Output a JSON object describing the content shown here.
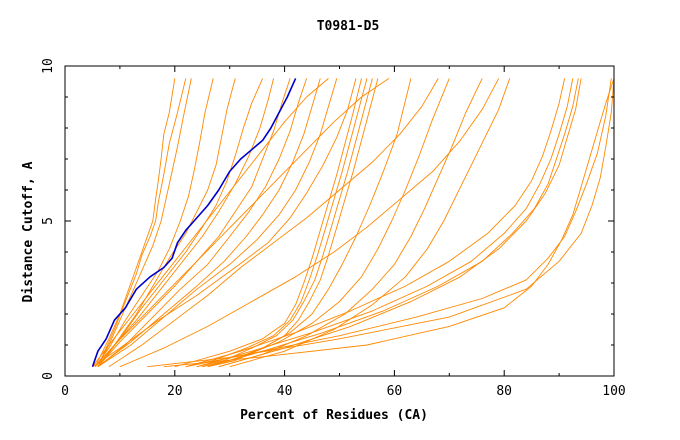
{
  "chart_data": {
    "type": "line",
    "title": "T0981-D5",
    "xlabel": "Percent of Residues (CA)",
    "ylabel": "Distance Cutoff, A",
    "xlim": [
      0,
      100
    ],
    "ylim": [
      0,
      10
    ],
    "xticks": [
      "0",
      "20",
      "40",
      "60",
      "80",
      "100"
    ],
    "yticks": [
      "0",
      "5",
      "10"
    ],
    "grid": false,
    "colors": {
      "highlight": "#0000cc",
      "others": "#ff8800"
    },
    "highlight_series": {
      "x": [
        5.0,
        6.0,
        7.5,
        9.0,
        11.0,
        13.0,
        15.5,
        18.0,
        19.5,
        20.5,
        22.0,
        24.0,
        26.0,
        28.0,
        30.0,
        32.0,
        34.0,
        36.0,
        37.5,
        39.0,
        40.5,
        42.0
      ],
      "y": [
        0.3,
        0.8,
        1.2,
        1.8,
        2.2,
        2.8,
        3.2,
        3.5,
        3.8,
        4.3,
        4.7,
        5.1,
        5.5,
        6.0,
        6.6,
        7.0,
        7.3,
        7.6,
        8.0,
        8.5,
        9.0,
        9.6
      ]
    },
    "series": [
      {
        "x": [
          5.5,
          8,
          10,
          12,
          13,
          14,
          15,
          16,
          16.5,
          17,
          17.5,
          18,
          19,
          20
        ],
        "y": [
          0.3,
          1.2,
          2.0,
          3.0,
          3.5,
          4.0,
          4.5,
          5.0,
          5.7,
          6.3,
          7.0,
          7.8,
          8.5,
          9.6
        ]
      },
      {
        "x": [
          6,
          9,
          11,
          13,
          14,
          15.5,
          16.5,
          17,
          18,
          19,
          20.5,
          22
        ],
        "y": [
          0.3,
          1.5,
          2.4,
          3.3,
          3.9,
          4.5,
          5.0,
          5.6,
          6.5,
          7.5,
          8.5,
          9.6
        ]
      },
      {
        "x": [
          6,
          8,
          10,
          12,
          14,
          16,
          17.5,
          18.5,
          19.5,
          20.5,
          21.5,
          23
        ],
        "y": [
          0.3,
          1.0,
          1.8,
          2.6,
          3.4,
          4.2,
          5.0,
          5.8,
          6.6,
          7.4,
          8.3,
          9.6
        ]
      },
      {
        "x": [
          5.5,
          8,
          11,
          14,
          17,
          19,
          21,
          22.5,
          23.5,
          24.5,
          25.5,
          27
        ],
        "y": [
          0.3,
          0.9,
          1.8,
          2.6,
          3.4,
          4.1,
          5.0,
          5.8,
          6.6,
          7.5,
          8.5,
          9.6
        ]
      },
      {
        "x": [
          6,
          9,
          13,
          16,
          19,
          22,
          24,
          26,
          27.5,
          28.5,
          29.5,
          31
        ],
        "y": [
          0.3,
          1.0,
          2.0,
          2.9,
          3.8,
          4.6,
          5.3,
          6.0,
          6.8,
          7.7,
          8.6,
          9.6
        ]
      },
      {
        "x": [
          6,
          10,
          14,
          18,
          22,
          25,
          27.5,
          29.5,
          31,
          32.5,
          34,
          36
        ],
        "y": [
          0.3,
          1.2,
          2.2,
          3.1,
          4.0,
          4.8,
          5.5,
          6.3,
          7.1,
          8.0,
          8.8,
          9.6
        ]
      },
      {
        "x": [
          5.5,
          9,
          13,
          17,
          21,
          25,
          28,
          31,
          33.5,
          35.5,
          37,
          38
        ],
        "y": [
          0.3,
          1.0,
          1.8,
          2.7,
          3.6,
          4.5,
          5.3,
          6.2,
          7.1,
          8.0,
          8.9,
          9.6
        ]
      },
      {
        "x": [
          6,
          10,
          15,
          20,
          24,
          28,
          31,
          34,
          36,
          38,
          39.5,
          41
        ],
        "y": [
          0.3,
          1.1,
          2.0,
          2.9,
          3.7,
          4.5,
          5.3,
          6.1,
          7.0,
          7.9,
          8.8,
          9.6
        ]
      },
      {
        "x": [
          6,
          11,
          16,
          21,
          26,
          30,
          33.5,
          36.5,
          39,
          41,
          42.5,
          44
        ],
        "y": [
          0.3,
          1.0,
          1.9,
          2.8,
          3.6,
          4.5,
          5.3,
          6.1,
          7.0,
          7.9,
          8.8,
          9.6
        ]
      },
      {
        "x": [
          6,
          12,
          18,
          24,
          29,
          33,
          36,
          39,
          41.5,
          43.5,
          45,
          46.5
        ],
        "y": [
          0.3,
          1.1,
          2.0,
          2.9,
          3.7,
          4.5,
          5.2,
          6.0,
          6.9,
          7.8,
          8.7,
          9.6
        ]
      },
      {
        "x": [
          6,
          12,
          18,
          24,
          30,
          35,
          39,
          42,
          44.5,
          46.5,
          48,
          49.5
        ],
        "y": [
          0.3,
          1.0,
          1.9,
          2.8,
          3.6,
          4.4,
          5.2,
          6.0,
          6.9,
          7.8,
          8.7,
          9.6
        ]
      },
      {
        "x": [
          5,
          10,
          17,
          24,
          31,
          37,
          41,
          44,
          47,
          49.5,
          51.5,
          53
        ],
        "y": [
          0.3,
          0.9,
          1.8,
          2.6,
          3.5,
          4.3,
          5.1,
          5.9,
          6.8,
          7.7,
          8.6,
          9.6
        ]
      },
      {
        "x": [
          20,
          24,
          30,
          36,
          40,
          42,
          43.5,
          45,
          46.5,
          48,
          49.5,
          51,
          52.5,
          54
        ],
        "y": [
          0.3,
          0.5,
          0.8,
          1.2,
          1.7,
          2.3,
          3.0,
          3.8,
          4.7,
          5.6,
          6.5,
          7.5,
          8.5,
          9.6
        ]
      },
      {
        "x": [
          22,
          27,
          33,
          38,
          41,
          43,
          44.5,
          46,
          47.5,
          49,
          50.5,
          52,
          53.5,
          55
        ],
        "y": [
          0.3,
          0.5,
          0.9,
          1.3,
          1.8,
          2.4,
          3.1,
          3.9,
          4.8,
          5.7,
          6.6,
          7.6,
          8.6,
          9.6
        ]
      },
      {
        "x": [
          24,
          29,
          34,
          38.5,
          41.5,
          43.5,
          45.5,
          47,
          48.5,
          50,
          51.5,
          53,
          54.5,
          56
        ],
        "y": [
          0.3,
          0.5,
          0.9,
          1.3,
          1.8,
          2.4,
          3.1,
          3.9,
          4.8,
          5.7,
          6.6,
          7.6,
          8.6,
          9.6
        ]
      },
      {
        "x": [
          26,
          31,
          36,
          40,
          42.5,
          44.5,
          46.5,
          48,
          49.5,
          51,
          52.5,
          54,
          55.5,
          57
        ],
        "y": [
          0.3,
          0.5,
          0.9,
          1.3,
          1.8,
          2.4,
          3.1,
          3.9,
          4.8,
          5.7,
          6.6,
          7.6,
          8.6,
          9.6
        ]
      },
      {
        "x": [
          25,
          30,
          36,
          41,
          45,
          48,
          50.5,
          53,
          55.5,
          58,
          60.5,
          63
        ],
        "y": [
          0.3,
          0.5,
          0.9,
          1.4,
          2.0,
          2.8,
          3.6,
          4.5,
          5.5,
          6.6,
          7.8,
          9.6
        ]
      },
      {
        "x": [
          25,
          32,
          39,
          45,
          50,
          54,
          57,
          59.5,
          62,
          64.5,
          67,
          70
        ],
        "y": [
          0.3,
          0.6,
          1.1,
          1.7,
          2.4,
          3.2,
          4.1,
          5.0,
          6.0,
          7.1,
          8.3,
          9.6
        ]
      },
      {
        "x": [
          28,
          36,
          44,
          51,
          56,
          60,
          63,
          65.5,
          68,
          70.5,
          73,
          76
        ],
        "y": [
          0.3,
          0.7,
          1.3,
          2.0,
          2.8,
          3.6,
          4.5,
          5.4,
          6.4,
          7.4,
          8.5,
          9.6
        ]
      },
      {
        "x": [
          30,
          40,
          49,
          56,
          62,
          66,
          69,
          71.5,
          74,
          76.5,
          79,
          81
        ],
        "y": [
          0.3,
          0.8,
          1.5,
          2.3,
          3.2,
          4.1,
          5.0,
          5.9,
          6.8,
          7.7,
          8.6,
          9.6
        ]
      },
      {
        "x": [
          22,
          32,
          42,
          52,
          62,
          70,
          77,
          82,
          85,
          87,
          88.5,
          90,
          91
        ],
        "y": [
          0.3,
          0.8,
          1.4,
          2.1,
          2.9,
          3.7,
          4.6,
          5.5,
          6.3,
          7.1,
          7.9,
          8.8,
          9.6
        ]
      },
      {
        "x": [
          24,
          34,
          45,
          56,
          66,
          74,
          80,
          84,
          86.5,
          88.5,
          90,
          91.5,
          92.5
        ],
        "y": [
          0.3,
          0.8,
          1.4,
          2.1,
          2.9,
          3.7,
          4.6,
          5.4,
          6.2,
          7.0,
          7.8,
          8.7,
          9.6
        ]
      },
      {
        "x": [
          26,
          36,
          47,
          58,
          68,
          76,
          81.5,
          85.5,
          88,
          89.5,
          91,
          92.5,
          93.5
        ],
        "y": [
          0.3,
          0.8,
          1.4,
          2.1,
          2.9,
          3.7,
          4.6,
          5.4,
          6.2,
          7.0,
          7.8,
          8.7,
          9.6
        ]
      },
      {
        "x": [
          28,
          40,
          52,
          63,
          72,
          79,
          84,
          87.5,
          90,
          91.5,
          93,
          94
        ],
        "y": [
          0.3,
          0.9,
          1.6,
          2.4,
          3.2,
          4.1,
          5.0,
          5.9,
          6.8,
          7.7,
          8.6,
          9.6
        ]
      },
      {
        "x": [
          22,
          36,
          50,
          64,
          76,
          84,
          88,
          91,
          93,
          95,
          97,
          98.5,
          99.5
        ],
        "y": [
          0.3,
          0.8,
          1.3,
          1.9,
          2.5,
          3.1,
          3.8,
          4.5,
          5.3,
          6.2,
          7.2,
          8.4,
          9.6
        ]
      },
      {
        "x": [
          18,
          35,
          55,
          70,
          80,
          85,
          88,
          90.5,
          92.5,
          94,
          95.5,
          97,
          98.5,
          100
        ],
        "y": [
          0.3,
          0.6,
          1.0,
          1.6,
          2.2,
          2.9,
          3.6,
          4.4,
          5.2,
          6.1,
          7.0,
          7.9,
          8.8,
          9.6
        ]
      },
      {
        "x": [
          15,
          30,
          50,
          70,
          84,
          90,
          94,
          96,
          97.5,
          98.5,
          99.5,
          100
        ],
        "y": [
          0.3,
          0.6,
          1.2,
          1.9,
          2.8,
          3.7,
          4.6,
          5.5,
          6.4,
          7.4,
          8.5,
          9.6
        ]
      },
      {
        "x": [
          5,
          8,
          12,
          16,
          20,
          24,
          28,
          32,
          36,
          40,
          44,
          48
        ],
        "y": [
          0.3,
          1.0,
          1.9,
          2.8,
          3.7,
          4.6,
          5.5,
          6.4,
          7.3,
          8.2,
          9.0,
          9.6
        ]
      },
      {
        "x": [
          5.5,
          9,
          14,
          19,
          24,
          29,
          34,
          39,
          44,
          49,
          54,
          59
        ],
        "y": [
          0.3,
          1.0,
          1.9,
          2.8,
          3.7,
          4.6,
          5.5,
          6.4,
          7.3,
          8.2,
          9.0,
          9.6
        ]
      },
      {
        "x": [
          8,
          14,
          20,
          26,
          32,
          38,
          44,
          50,
          56,
          61,
          65,
          68
        ],
        "y": [
          0.3,
          1.0,
          1.8,
          2.6,
          3.5,
          4.3,
          5.1,
          6.0,
          6.9,
          7.8,
          8.7,
          9.6
        ]
      },
      {
        "x": [
          10,
          18,
          26,
          34,
          42,
          49,
          55,
          61,
          67,
          72,
          76,
          79
        ],
        "y": [
          0.3,
          0.9,
          1.6,
          2.4,
          3.2,
          4.0,
          4.8,
          5.7,
          6.6,
          7.6,
          8.6,
          9.6
        ]
      }
    ]
  }
}
